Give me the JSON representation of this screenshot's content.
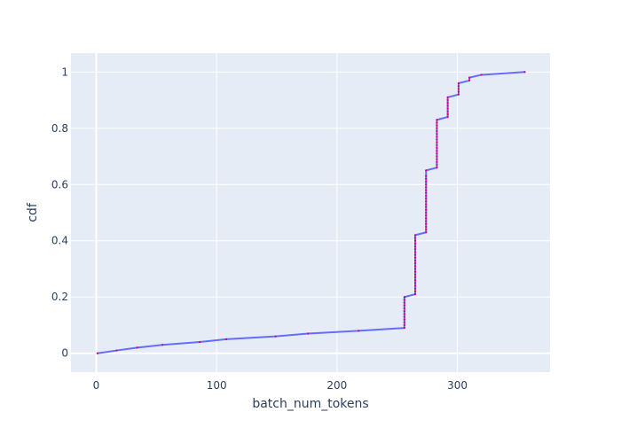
{
  "chart_data": {
    "type": "line",
    "title": "",
    "xlabel": "batch_num_tokens",
    "ylabel": "cdf",
    "xlim": [
      -21,
      377
    ],
    "ylim": [
      -0.067,
      1.067
    ],
    "grid": true,
    "legend": "none",
    "x_ticks": [
      0,
      100,
      200,
      300
    ],
    "x_tick_labels": [
      "0",
      "100",
      "200",
      "300"
    ],
    "y_ticks": [
      0,
      0.2,
      0.4,
      0.6,
      0.8,
      1
    ],
    "y_tick_labels": [
      "0",
      "0.2",
      "0.4",
      "0.6",
      "0.8",
      "1"
    ],
    "colors": {
      "plot_bg": "#e5ecf6",
      "grid": "#ffffff",
      "line": "#636efa",
      "marker": "#d6006d",
      "text": "#2a3f5f"
    },
    "series": [
      {
        "x": [
          1,
          17,
          34,
          55,
          86,
          108,
          149,
          176,
          218,
          256,
          256,
          256,
          256,
          256,
          256,
          256,
          256,
          256,
          256,
          256,
          256,
          265,
          265,
          265,
          265,
          265,
          265,
          265,
          265,
          265,
          265,
          265,
          265,
          265,
          265,
          265,
          265,
          265,
          265,
          265,
          265,
          265,
          265,
          274,
          274,
          274,
          274,
          274,
          274,
          274,
          274,
          274,
          274,
          274,
          274,
          274,
          274,
          274,
          274,
          274,
          274,
          274,
          274,
          274,
          274,
          283,
          283,
          283,
          283,
          283,
          283,
          283,
          283,
          283,
          283,
          283,
          283,
          283,
          283,
          283,
          283,
          283,
          283,
          292,
          292,
          292,
          292,
          292,
          292,
          292,
          292,
          301,
          301,
          301,
          301,
          301,
          310,
          310,
          320,
          356
        ],
        "y": [
          0,
          0.01,
          0.02,
          0.03,
          0.04,
          0.05,
          0.06,
          0.07,
          0.08,
          0.09,
          0.1,
          0.11,
          0.12,
          0.13,
          0.14,
          0.15,
          0.16,
          0.17,
          0.18,
          0.19,
          0.2,
          0.21,
          0.22,
          0.23,
          0.24,
          0.25,
          0.26,
          0.27,
          0.28,
          0.29,
          0.3,
          0.31,
          0.32,
          0.33,
          0.34,
          0.35,
          0.36,
          0.37,
          0.38,
          0.39,
          0.4,
          0.41,
          0.42,
          0.43,
          0.44,
          0.45,
          0.46,
          0.47,
          0.48,
          0.49,
          0.5,
          0.51,
          0.52,
          0.53,
          0.54,
          0.55,
          0.56,
          0.57,
          0.58,
          0.59,
          0.6,
          0.61,
          0.62,
          0.63,
          0.65,
          0.66,
          0.67,
          0.68,
          0.69,
          0.7,
          0.71,
          0.72,
          0.73,
          0.74,
          0.75,
          0.76,
          0.77,
          0.78,
          0.79,
          0.8,
          0.81,
          0.82,
          0.83,
          0.84,
          0.85,
          0.86,
          0.87,
          0.88,
          0.89,
          0.9,
          0.91,
          0.92,
          0.93,
          0.94,
          0.95,
          0.96,
          0.97,
          0.98,
          0.99,
          1
        ]
      }
    ]
  }
}
